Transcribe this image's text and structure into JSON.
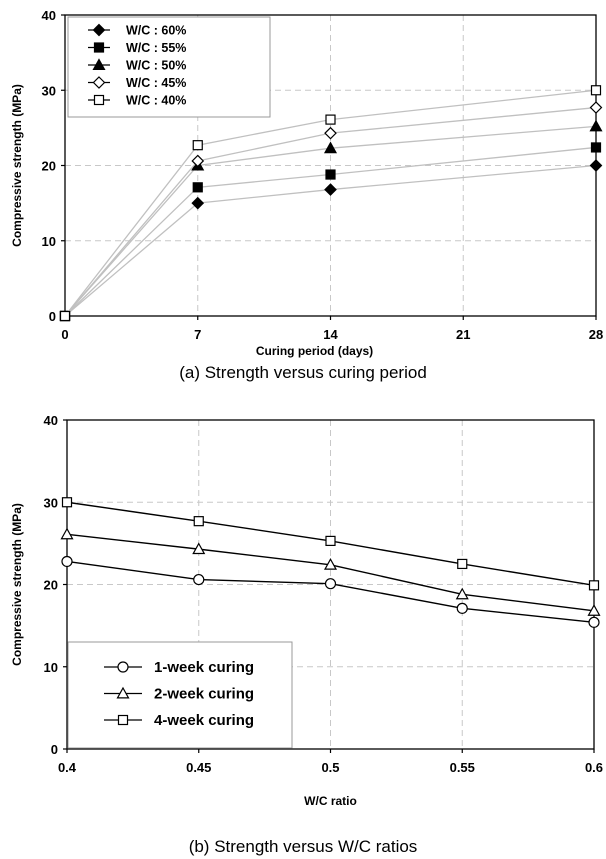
{
  "chart_data": [
    {
      "type": "line",
      "caption": "(a) Strength versus curing period",
      "xlabel": "Curing period (days)",
      "ylabel": "Compressive strength (MPa)",
      "xlim": [
        0,
        28
      ],
      "ylim": [
        0,
        40
      ],
      "xticks": [
        0,
        7,
        14,
        21,
        28
      ],
      "yticks": [
        0,
        10,
        20,
        30,
        40
      ],
      "grid": true,
      "legend_position": "top-left",
      "x": [
        0,
        7,
        14,
        28
      ],
      "series": [
        {
          "name": "W/C : 60%",
          "marker": "diamond-filled",
          "values": [
            0,
            15,
            16.8,
            20
          ]
        },
        {
          "name": "W/C : 55%",
          "marker": "square-filled",
          "values": [
            0,
            17.1,
            18.8,
            22.4
          ]
        },
        {
          "name": "W/C : 50%",
          "marker": "triangle-filled",
          "values": [
            0,
            20,
            22.3,
            25.2
          ]
        },
        {
          "name": "W/C : 45%",
          "marker": "diamond-open",
          "values": [
            0,
            20.6,
            24.3,
            27.7
          ]
        },
        {
          "name": "W/C : 40%",
          "marker": "square-open",
          "values": [
            0,
            22.7,
            26.1,
            30
          ]
        }
      ],
      "colors": {
        "line": "#c0c0c0",
        "marker": "#000000"
      }
    },
    {
      "type": "line",
      "caption": "(b) Strength versus W/C ratios",
      "xlabel": "W/C ratio",
      "ylabel": "Compressive strength (MPa)",
      "xlim": [
        0.4,
        0.6
      ],
      "ylim": [
        0,
        40
      ],
      "xticks": [
        "0.4",
        "0.45",
        "0.5",
        "0.55",
        "0.6"
      ],
      "yticks": [
        0,
        10,
        20,
        30,
        40
      ],
      "grid": true,
      "legend_position": "bottom-left",
      "x": [
        0.4,
        0.45,
        0.5,
        0.55,
        0.6
      ],
      "series": [
        {
          "name": "1-week curing",
          "marker": "circle-open",
          "values": [
            22.8,
            20.6,
            20.1,
            17.1,
            15.4
          ]
        },
        {
          "name": "2-week curing",
          "marker": "triangle-open",
          "values": [
            26.1,
            24.3,
            22.4,
            18.8,
            16.8
          ]
        },
        {
          "name": "4-week curing",
          "marker": "square-open",
          "values": [
            30,
            27.7,
            25.3,
            22.5,
            19.9
          ]
        }
      ],
      "colors": {
        "line": "#000000",
        "marker": "#000000"
      }
    }
  ]
}
